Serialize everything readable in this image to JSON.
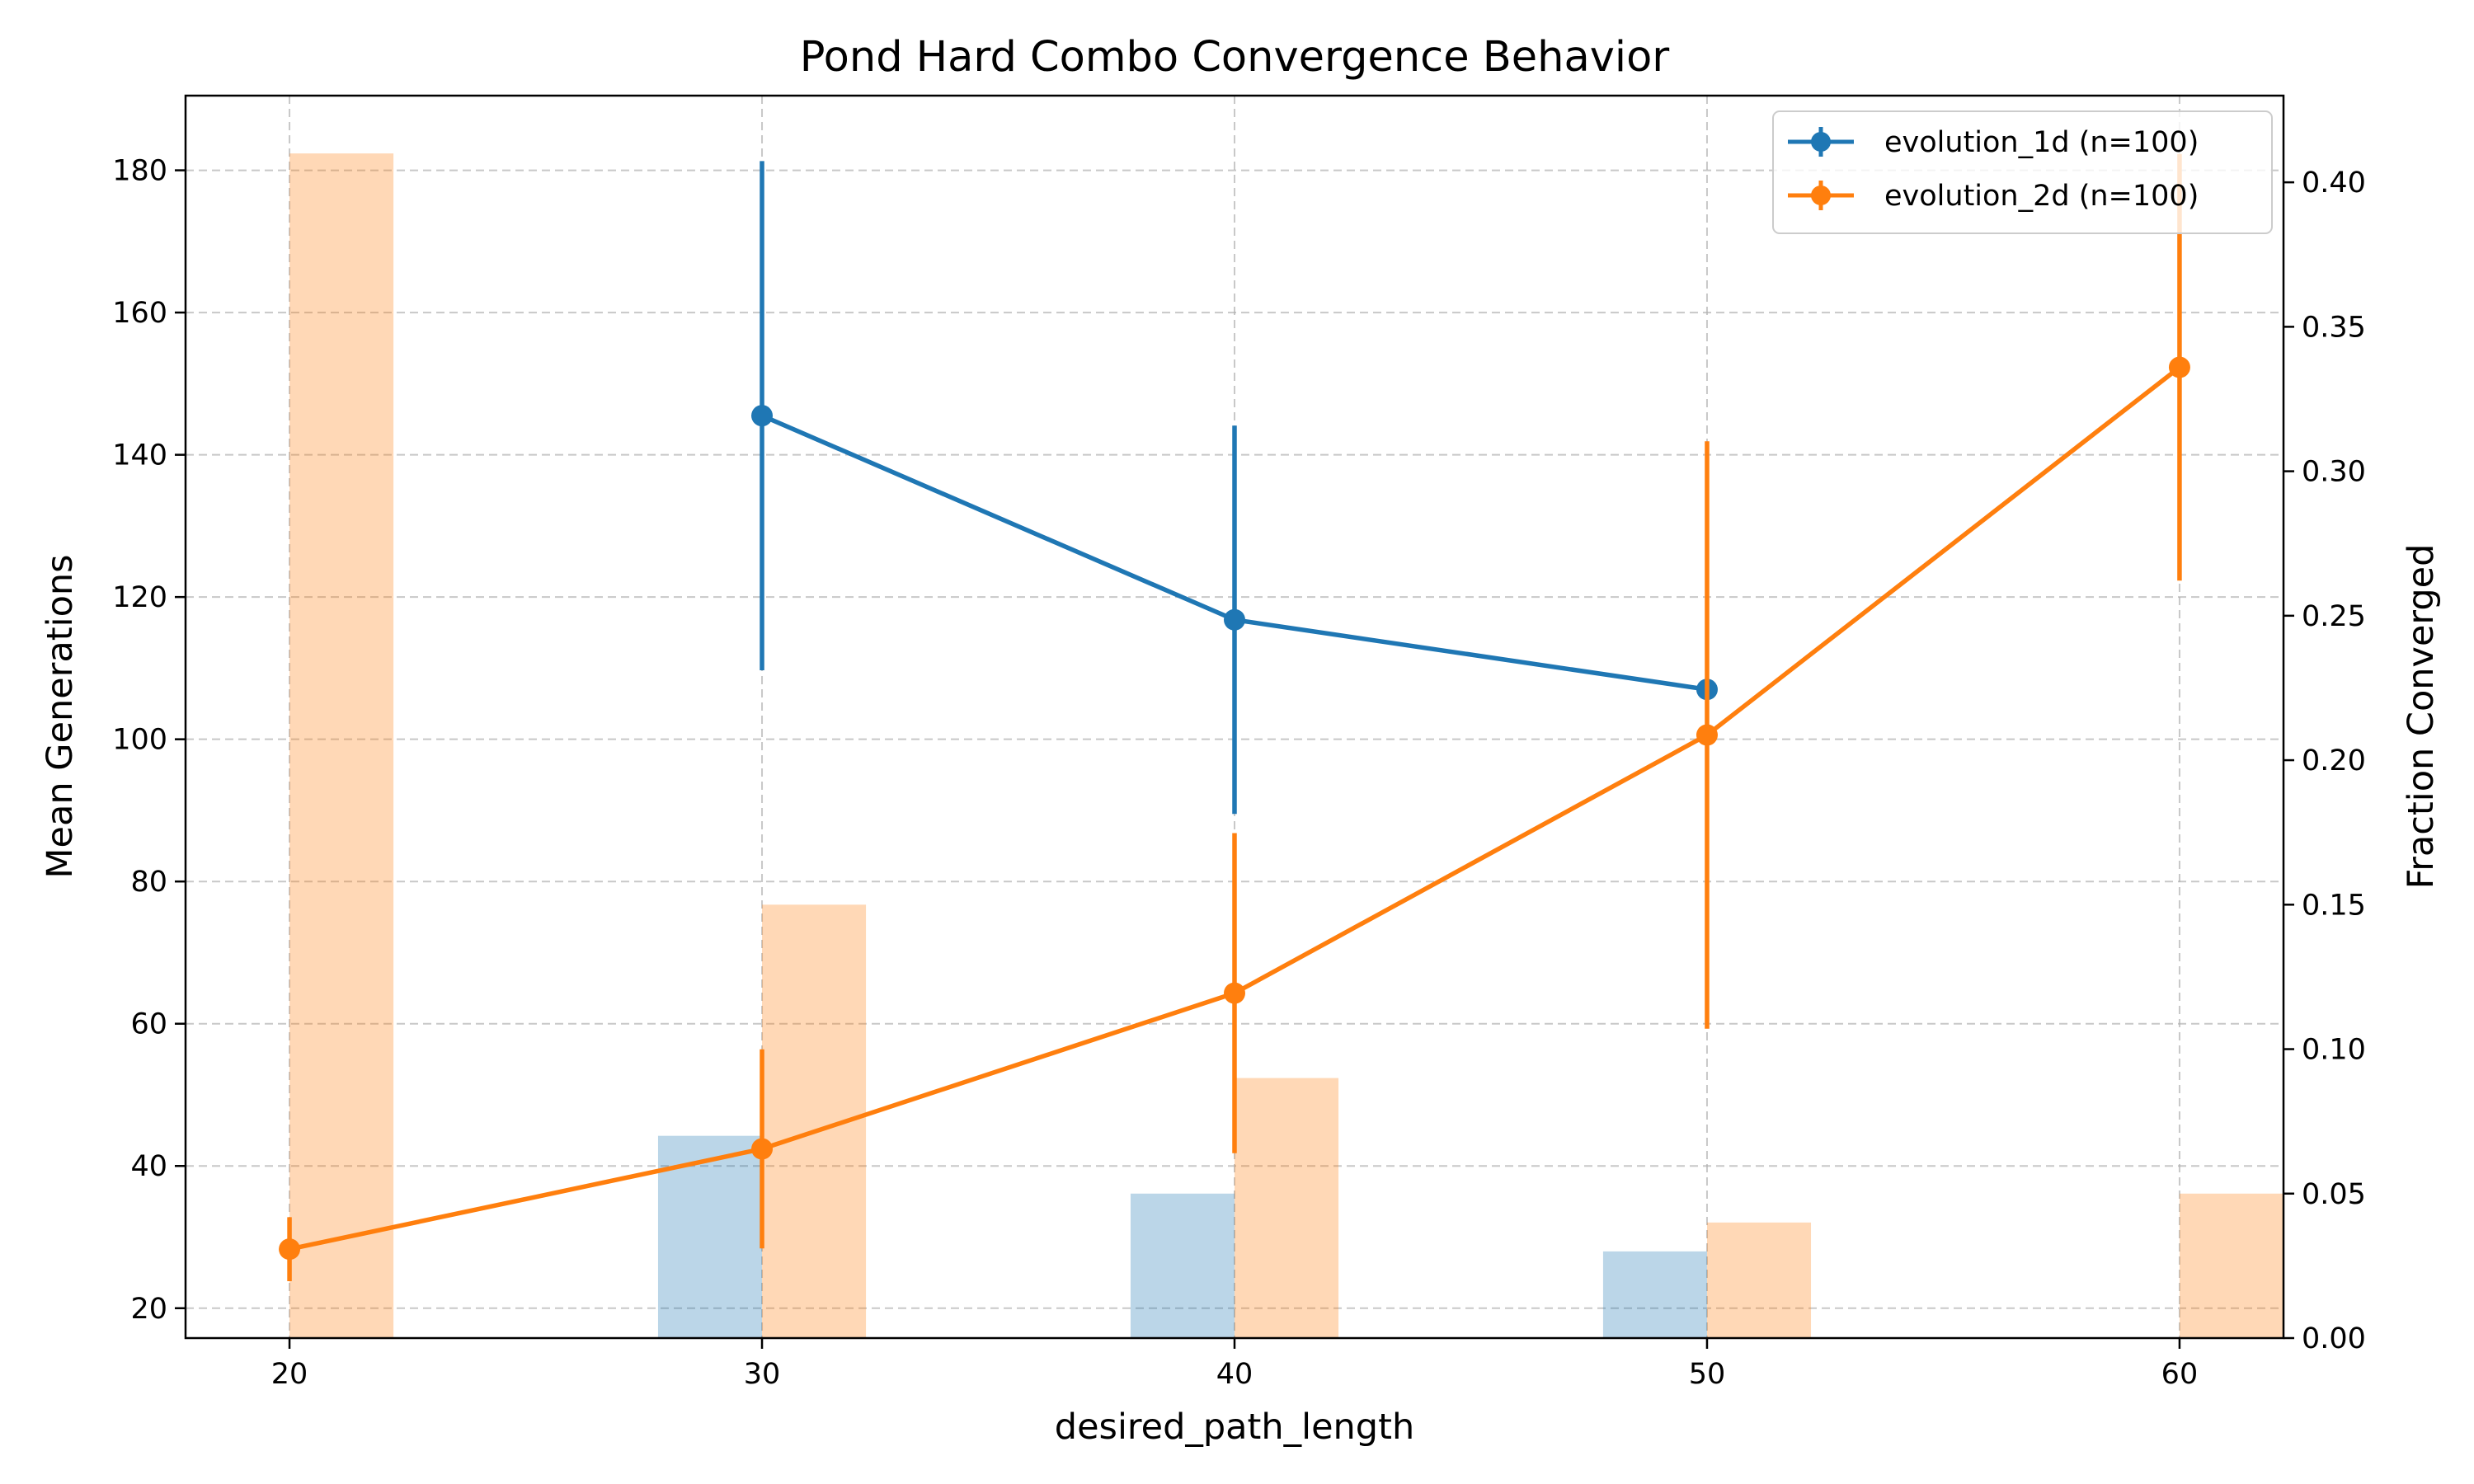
{
  "chart_data": {
    "type": "line",
    "title": "Pond Hard Combo Convergence Behavior",
    "xlabel": "desired_path_length",
    "ylabel": "Mean Generations",
    "y2label": "Fraction Converged",
    "xlim": [
      17.8,
      62.2
    ],
    "ylim": [
      15.8,
      190.5
    ],
    "y2lim": [
      0,
      0.43
    ],
    "xticks": [
      "20",
      "30",
      "40",
      "50",
      "60"
    ],
    "xtick_values": [
      20,
      30,
      40,
      50,
      60
    ],
    "yticks": [
      "20",
      "40",
      "60",
      "80",
      "100",
      "120",
      "140",
      "160",
      "180"
    ],
    "ytick_values": [
      20,
      40,
      60,
      80,
      100,
      120,
      140,
      160,
      180
    ],
    "y2ticks": [
      "0.00",
      "0.05",
      "0.10",
      "0.15",
      "0.20",
      "0.25",
      "0.30",
      "0.35",
      "0.40"
    ],
    "y2tick_values": [
      0,
      0.05,
      0.1,
      0.15,
      0.2,
      0.25,
      0.3,
      0.35,
      0.4
    ],
    "grid": true,
    "legend_position": "top-right",
    "series": [
      {
        "name": "evolution_1d (n=100)",
        "color": "#1f77b4",
        "x": [
          30,
          40,
          50
        ],
        "y": [
          145.5,
          116.8,
          107
        ],
        "yerr": [
          35.8,
          27.3,
          0
        ]
      },
      {
        "name": "evolution_2d (n=100)",
        "color": "#ff7f0e",
        "x": [
          20,
          30,
          40,
          50,
          60
        ],
        "y": [
          28.3,
          42.4,
          64.3,
          100.6,
          152.3
        ],
        "yerr": [
          4.5,
          14,
          22.5,
          41.3,
          30
        ]
      }
    ],
    "bars": [
      {
        "series": "evolution_1d (n=100)",
        "color": "#1f77b4",
        "opacity": 0.3,
        "side": "left",
        "x": [
          30,
          40,
          50
        ],
        "values": [
          0.07,
          0.05,
          0.03
        ]
      },
      {
        "series": "evolution_2d (n=100)",
        "color": "#ff7f0e",
        "opacity": 0.3,
        "side": "right",
        "x": [
          20,
          30,
          40,
          50,
          60
        ],
        "values": [
          0.41,
          0.15,
          0.09,
          0.04,
          0.05
        ]
      }
    ]
  }
}
